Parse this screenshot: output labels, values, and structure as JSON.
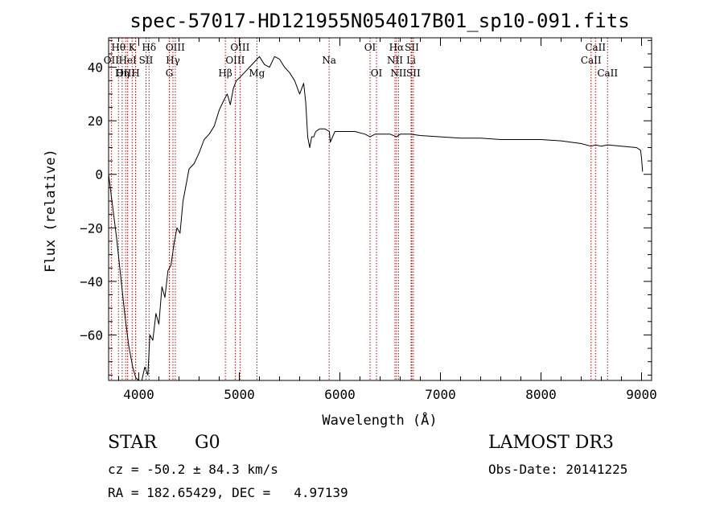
{
  "chart_data": {
    "type": "line",
    "title": "spec-57017-HD121955N054017B01_sp10-091.fits",
    "xlabel": "Wavelength (Å)",
    "ylabel": "Flux (relative)",
    "xlim": [
      3700,
      9100
    ],
    "ylim": [
      -77,
      51
    ],
    "x_ticks": [
      4000,
      5000,
      6000,
      7000,
      8000,
      9000
    ],
    "y_ticks": [
      -60,
      -40,
      -20,
      0,
      20,
      40
    ],
    "grid": false,
    "series": [
      {
        "name": "flux",
        "x": [
          3700,
          3740,
          3780,
          3820,
          3860,
          3900,
          3940,
          3970,
          4000,
          4030,
          4060,
          4090,
          4110,
          4140,
          4170,
          4200,
          4230,
          4260,
          4290,
          4320,
          4350,
          4380,
          4410,
          4440,
          4470,
          4500,
          4550,
          4600,
          4650,
          4700,
          4750,
          4800,
          4850,
          4880,
          4910,
          4940,
          4970,
          5000,
          5050,
          5100,
          5150,
          5200,
          5250,
          5300,
          5350,
          5400,
          5450,
          5500,
          5550,
          5600,
          5640,
          5660,
          5680,
          5700,
          5720,
          5740,
          5760,
          5800,
          5850,
          5895,
          5905,
          5950,
          6050,
          6150,
          6250,
          6300,
          6350,
          6400,
          6500,
          6563,
          6600,
          6700,
          6800,
          7000,
          7200,
          7400,
          7600,
          7800,
          8000,
          8200,
          8400,
          8498,
          8542,
          8600,
          8662,
          8800,
          8950,
          8990,
          9000,
          9010
        ],
        "y": [
          0,
          -12,
          -24,
          -38,
          -52,
          -64,
          -72,
          -76,
          -77,
          -77,
          -72,
          -75,
          -60,
          -62,
          -52,
          -56,
          -42,
          -46,
          -36,
          -34,
          -26,
          -20,
          -22,
          -10,
          -4,
          2,
          4,
          8,
          13,
          15,
          18,
          24,
          28,
          30,
          26,
          32,
          35,
          36,
          38,
          40,
          42,
          44,
          41,
          40,
          44,
          43,
          40,
          38,
          35,
          30,
          34,
          27,
          14,
          10,
          14,
          14,
          16,
          17,
          17,
          16,
          12,
          16,
          16,
          16,
          15,
          14,
          15,
          15,
          15,
          14,
          15,
          15,
          14.5,
          14,
          13.5,
          13.5,
          13,
          13,
          13,
          12.5,
          11.5,
          10.5,
          11,
          10.5,
          11,
          10.5,
          10,
          9,
          6,
          1
        ]
      }
    ],
    "line_marks": [
      {
        "label": "Hθ",
        "x": 3798,
        "row": 1
      },
      {
        "label": "OII",
        "x": 3727,
        "row": 2
      },
      {
        "label": "OIII",
        "x": 3869,
        "row": 3
      },
      {
        "label": "K",
        "x": 3934,
        "row": 1
      },
      {
        "label": "HeI",
        "x": 3889,
        "row": 2
      },
      {
        "label": "Hη",
        "x": 3835,
        "row": 3
      },
      {
        "label": "Hδ",
        "x": 4102,
        "row": 1
      },
      {
        "label": "SII",
        "x": 4072,
        "row": 2
      },
      {
        "label": "H",
        "x": 3968,
        "row": 3
      },
      {
        "label": "OIII",
        "x": 4363,
        "row": 1
      },
      {
        "label": "Hγ",
        "x": 4340,
        "row": 2
      },
      {
        "label": "G",
        "x": 4304,
        "row": 3
      },
      {
        "label": "OIII",
        "x": 5007,
        "row": 1
      },
      {
        "label": "OIII",
        "x": 4959,
        "row": 2
      },
      {
        "label": "Hβ",
        "x": 4861,
        "row": 3
      },
      {
        "label": "Mg",
        "x": 5175,
        "row": 3
      },
      {
        "label": "Na",
        "x": 5893,
        "row": 2
      },
      {
        "label": "OI",
        "x": 6300,
        "row": 1
      },
      {
        "label": "OI",
        "x": 6364,
        "row": 3
      },
      {
        "label": "Hα",
        "x": 6563,
        "row": 1
      },
      {
        "label": "SII",
        "x": 6716,
        "row": 1
      },
      {
        "label": "NII",
        "x": 6548,
        "row": 2
      },
      {
        "label": "Li",
        "x": 6708,
        "row": 2
      },
      {
        "label": "NII",
        "x": 6583,
        "row": 3
      },
      {
        "label": "SII",
        "x": 6731,
        "row": 3
      },
      {
        "label": "CaII",
        "x": 8542,
        "row": 1
      },
      {
        "label": "CaII",
        "x": 8498,
        "row": 2
      },
      {
        "label": "CaII",
        "x": 8662,
        "row": 3
      }
    ],
    "colors": {
      "spectrum": "#000000",
      "marks": "#cc0000",
      "axes": "#000000"
    }
  },
  "info": {
    "object_class": "STAR",
    "subclass": "G0",
    "survey": "LAMOST DR3",
    "redshift": "cz = -50.2 ± 84.3 km/s",
    "obs_date": "Obs-Date: 20141225",
    "coords": "RA = 182.65429, DEC =   4.97139"
  }
}
